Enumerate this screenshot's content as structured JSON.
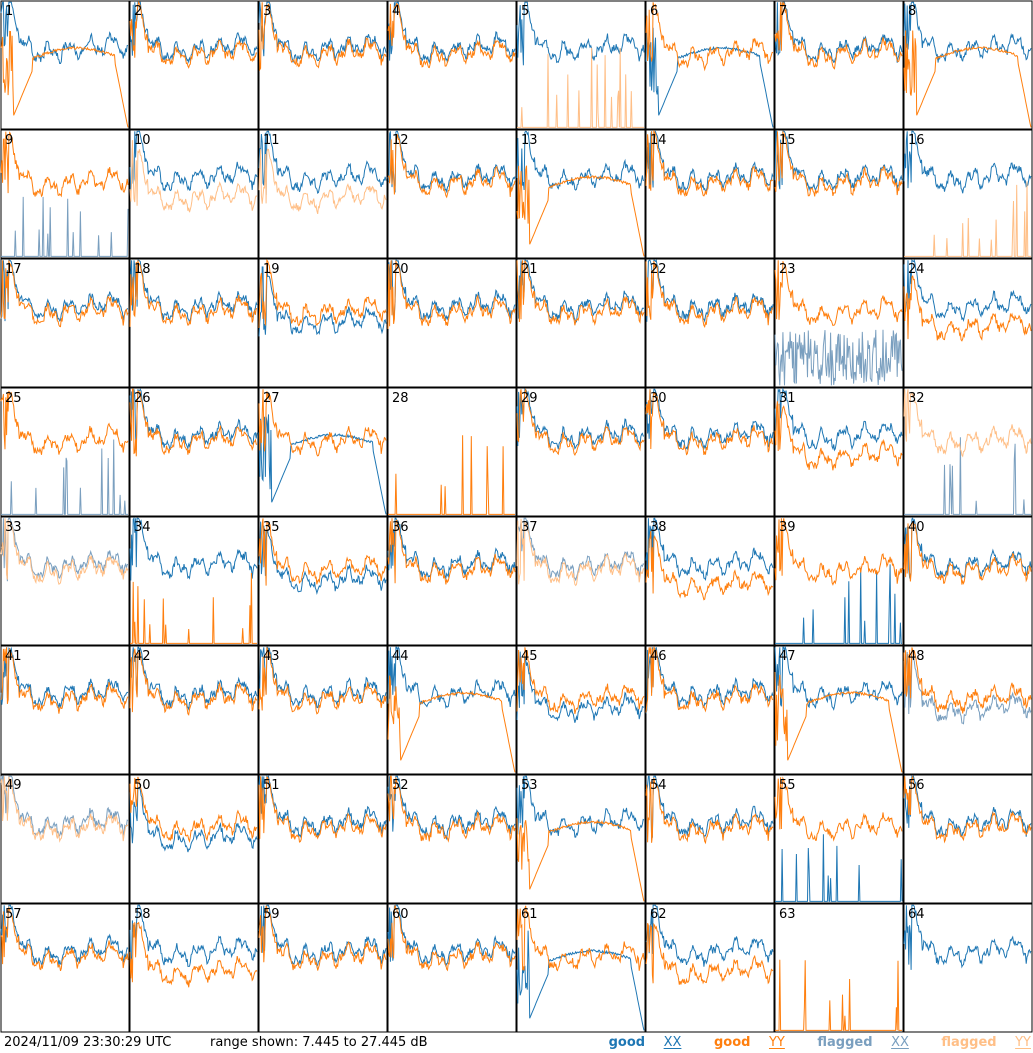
{
  "footer": {
    "timestamp": "2024/11/09 23:30:29 UTC",
    "range_text": "range shown: 7.445 to 27.445 dB"
  },
  "legend": [
    {
      "word": "good",
      "tag": "XX",
      "color": "#1f77b4"
    },
    {
      "word": "good",
      "tag": "YY",
      "color": "#ff7f0e"
    },
    {
      "word": "flagged",
      "tag": "XX",
      "color": "#7a9fbf"
    },
    {
      "word": "flagged",
      "tag": "YY",
      "color": "#ffbf87"
    }
  ],
  "chart_data": {
    "type": "line",
    "layout": "8x8 small multiples",
    "ylim": [
      7.445,
      27.445
    ],
    "panels": [
      {
        "n": "1",
        "xx": "good",
        "yy": "good",
        "xx_shape": "typical",
        "yy_shape": "dropout"
      },
      {
        "n": "2",
        "xx": "good",
        "yy": "good",
        "xx_shape": "typical",
        "yy_shape": "typical"
      },
      {
        "n": "3",
        "xx": "good",
        "yy": "good",
        "xx_shape": "typical",
        "yy_shape": "typical"
      },
      {
        "n": "4",
        "xx": "good",
        "yy": "good",
        "xx_shape": "typical",
        "yy_shape": "typical"
      },
      {
        "n": "5",
        "xx": "good",
        "yy": "flagged",
        "xx_shape": "typical",
        "yy_shape": "spikes"
      },
      {
        "n": "6",
        "xx": "good",
        "yy": "good",
        "xx_shape": "dropout",
        "yy_shape": "typical"
      },
      {
        "n": "7",
        "xx": "good",
        "yy": "good",
        "xx_shape": "typical",
        "yy_shape": "typical"
      },
      {
        "n": "8",
        "xx": "good",
        "yy": "good",
        "xx_shape": "typical",
        "yy_shape": "dropout"
      },
      {
        "n": "9",
        "xx": "flagged",
        "yy": "good",
        "xx_shape": "spikes",
        "yy_shape": "typical"
      },
      {
        "n": "10",
        "xx": "good",
        "yy": "flagged",
        "xx_shape": "typical",
        "yy_shape": "low"
      },
      {
        "n": "11",
        "xx": "good",
        "yy": "flagged",
        "xx_shape": "typical",
        "yy_shape": "low"
      },
      {
        "n": "12",
        "xx": "good",
        "yy": "good",
        "xx_shape": "typical",
        "yy_shape": "typical"
      },
      {
        "n": "13",
        "xx": "good",
        "yy": "good",
        "xx_shape": "typical",
        "yy_shape": "dropout"
      },
      {
        "n": "14",
        "xx": "good",
        "yy": "good",
        "xx_shape": "typical",
        "yy_shape": "typical"
      },
      {
        "n": "15",
        "xx": "good",
        "yy": "good",
        "xx_shape": "typical",
        "yy_shape": "typical"
      },
      {
        "n": "16",
        "xx": "good",
        "yy": "flagged",
        "xx_shape": "typical",
        "yy_shape": "spikes"
      },
      {
        "n": "17",
        "xx": "good",
        "yy": "good",
        "xx_shape": "typical",
        "yy_shape": "typical"
      },
      {
        "n": "18",
        "xx": "good",
        "yy": "good",
        "xx_shape": "typical",
        "yy_shape": "typical"
      },
      {
        "n": "19",
        "xx": "good",
        "yy": "good",
        "xx_shape": "low",
        "yy_shape": "typical"
      },
      {
        "n": "20",
        "xx": "good",
        "yy": "good",
        "xx_shape": "typical",
        "yy_shape": "typical"
      },
      {
        "n": "21",
        "xx": "good",
        "yy": "good",
        "xx_shape": "typical",
        "yy_shape": "typical"
      },
      {
        "n": "22",
        "xx": "good",
        "yy": "good",
        "xx_shape": "typical",
        "yy_shape": "typical"
      },
      {
        "n": "23",
        "xx": "flagged",
        "yy": "good",
        "xx_shape": "noisy",
        "yy_shape": "typical"
      },
      {
        "n": "24",
        "xx": "good",
        "yy": "good",
        "xx_shape": "typical",
        "yy_shape": "low"
      },
      {
        "n": "25",
        "xx": "flagged",
        "yy": "good",
        "xx_shape": "spikes",
        "yy_shape": "typical"
      },
      {
        "n": "26",
        "xx": "good",
        "yy": "good",
        "xx_shape": "typical",
        "yy_shape": "typical"
      },
      {
        "n": "27",
        "xx": "good",
        "yy": "good",
        "xx_shape": "dropout",
        "yy_shape": "typical"
      },
      {
        "n": "28",
        "xx": "flagged",
        "yy": "good",
        "xx_shape": "none",
        "yy_shape": "spikes"
      },
      {
        "n": "29",
        "xx": "good",
        "yy": "good",
        "xx_shape": "typical",
        "yy_shape": "typical"
      },
      {
        "n": "30",
        "xx": "good",
        "yy": "good",
        "xx_shape": "typical",
        "yy_shape": "typical"
      },
      {
        "n": "31",
        "xx": "good",
        "yy": "good",
        "xx_shape": "typical",
        "yy_shape": "low"
      },
      {
        "n": "32",
        "xx": "flagged",
        "yy": "flagged",
        "xx_shape": "spikes",
        "yy_shape": "typical"
      },
      {
        "n": "33",
        "xx": "flagged",
        "yy": "flagged",
        "xx_shape": "typical",
        "yy_shape": "typical"
      },
      {
        "n": "34",
        "xx": "good",
        "yy": "good",
        "xx_shape": "typical",
        "yy_shape": "spikes"
      },
      {
        "n": "35",
        "xx": "good",
        "yy": "good",
        "xx_shape": "low",
        "yy_shape": "typical"
      },
      {
        "n": "36",
        "xx": "good",
        "yy": "good",
        "xx_shape": "typical",
        "yy_shape": "typical"
      },
      {
        "n": "37",
        "xx": "flagged",
        "yy": "flagged",
        "xx_shape": "typical",
        "yy_shape": "typical"
      },
      {
        "n": "38",
        "xx": "good",
        "yy": "good",
        "xx_shape": "typical",
        "yy_shape": "low"
      },
      {
        "n": "39",
        "xx": "good",
        "yy": "good",
        "xx_shape": "spikes",
        "yy_shape": "typical"
      },
      {
        "n": "40",
        "xx": "good",
        "yy": "good",
        "xx_shape": "typical",
        "yy_shape": "typical"
      },
      {
        "n": "41",
        "xx": "good",
        "yy": "good",
        "xx_shape": "typical",
        "yy_shape": "typical"
      },
      {
        "n": "42",
        "xx": "good",
        "yy": "good",
        "xx_shape": "typical",
        "yy_shape": "typical"
      },
      {
        "n": "43",
        "xx": "good",
        "yy": "good",
        "xx_shape": "typical",
        "yy_shape": "typical"
      },
      {
        "n": "44",
        "xx": "good",
        "yy": "good",
        "xx_shape": "typical",
        "yy_shape": "dropout"
      },
      {
        "n": "45",
        "xx": "good",
        "yy": "good",
        "xx_shape": "low",
        "yy_shape": "typical"
      },
      {
        "n": "46",
        "xx": "good",
        "yy": "good",
        "xx_shape": "typical",
        "yy_shape": "typical"
      },
      {
        "n": "47",
        "xx": "good",
        "yy": "good",
        "xx_shape": "typical",
        "yy_shape": "dropout"
      },
      {
        "n": "48",
        "xx": "flagged",
        "yy": "good",
        "xx_shape": "low",
        "yy_shape": "typical"
      },
      {
        "n": "49",
        "xx": "flagged",
        "yy": "flagged",
        "xx_shape": "typical",
        "yy_shape": "typical"
      },
      {
        "n": "50",
        "xx": "good",
        "yy": "good",
        "xx_shape": "low",
        "yy_shape": "typical"
      },
      {
        "n": "51",
        "xx": "good",
        "yy": "good",
        "xx_shape": "typical",
        "yy_shape": "typical"
      },
      {
        "n": "52",
        "xx": "good",
        "yy": "good",
        "xx_shape": "typical",
        "yy_shape": "typical"
      },
      {
        "n": "53",
        "xx": "good",
        "yy": "good",
        "xx_shape": "typical",
        "yy_shape": "dropout"
      },
      {
        "n": "54",
        "xx": "good",
        "yy": "good",
        "xx_shape": "typical",
        "yy_shape": "typical"
      },
      {
        "n": "55",
        "xx": "good",
        "yy": "good",
        "xx_shape": "spikes",
        "yy_shape": "typical"
      },
      {
        "n": "56",
        "xx": "good",
        "yy": "good",
        "xx_shape": "typical",
        "yy_shape": "typical"
      },
      {
        "n": "57",
        "xx": "good",
        "yy": "good",
        "xx_shape": "typical",
        "yy_shape": "typical"
      },
      {
        "n": "58",
        "xx": "good",
        "yy": "good",
        "xx_shape": "typical",
        "yy_shape": "low"
      },
      {
        "n": "59",
        "xx": "good",
        "yy": "good",
        "xx_shape": "typical",
        "yy_shape": "typical"
      },
      {
        "n": "60",
        "xx": "good",
        "yy": "good",
        "xx_shape": "typical",
        "yy_shape": "typical"
      },
      {
        "n": "61",
        "xx": "good",
        "yy": "good",
        "xx_shape": "dropout",
        "yy_shape": "typical"
      },
      {
        "n": "62",
        "xx": "good",
        "yy": "good",
        "xx_shape": "typical",
        "yy_shape": "low"
      },
      {
        "n": "63",
        "xx": "good",
        "yy": "good",
        "xx_shape": "none",
        "yy_shape": "spikes"
      },
      {
        "n": "64",
        "xx": "good",
        "yy": "good",
        "xx_shape": "typical",
        "yy_shape": "none"
      }
    ]
  }
}
